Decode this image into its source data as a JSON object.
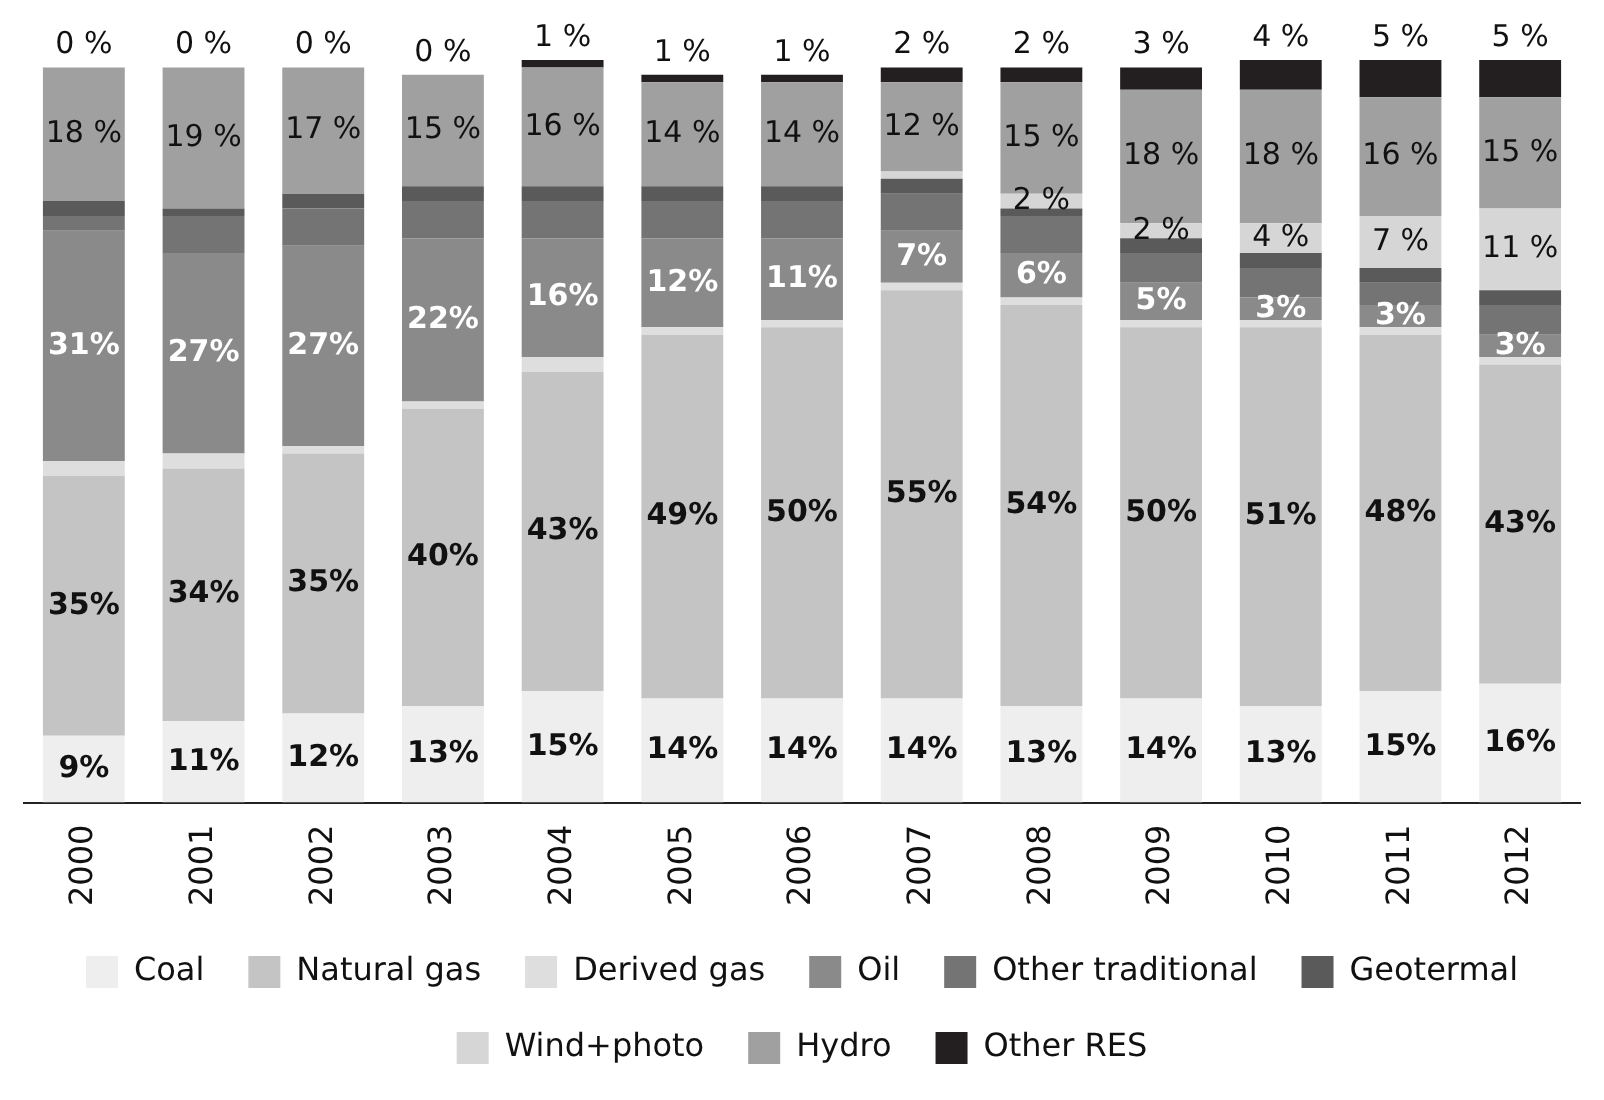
{
  "chart_data": {
    "type": "bar",
    "stacked": true,
    "categories": [
      "2000",
      "2001",
      "2002",
      "2003",
      "2004",
      "2005",
      "2006",
      "2007",
      "2008",
      "2009",
      "2010",
      "2011",
      "2012"
    ],
    "ylim": [
      0,
      100
    ],
    "tick_labels": "x",
    "grid": false,
    "legend": "bottom",
    "series": [
      {
        "name": "Coal",
        "color": "#eeeeee",
        "values": [
          9,
          11,
          12,
          13,
          15,
          14,
          14,
          14,
          13,
          14,
          13,
          15,
          16
        ],
        "value_labels": [
          "9%",
          "11%",
          "12%",
          "13%",
          "15%",
          "14%",
          "14%",
          "14%",
          "13%",
          "14%",
          "13%",
          "15%",
          "16%"
        ]
      },
      {
        "name": "Natural gas",
        "color": "#c4c4c4",
        "values": [
          35,
          34,
          35,
          40,
          43,
          49,
          50,
          55,
          54,
          50,
          51,
          48,
          43
        ],
        "value_labels": [
          "35%",
          "34%",
          "35%",
          "40%",
          "43%",
          "49%",
          "50%",
          "55%",
          "54%",
          "50%",
          "51%",
          "48%",
          "43%"
        ]
      },
      {
        "name": "Derived gas",
        "color": "#dedede",
        "values": [
          2,
          2,
          1,
          1,
          2,
          1,
          1,
          1,
          1,
          1,
          1,
          1,
          1
        ],
        "value_labels": [
          null,
          null,
          null,
          null,
          null,
          null,
          null,
          null,
          null,
          null,
          null,
          null,
          null
        ]
      },
      {
        "name": "Oil",
        "color": "#8a8a8a",
        "values": [
          31,
          27,
          27,
          22,
          16,
          12,
          11,
          7,
          6,
          5,
          3,
          3,
          3
        ],
        "value_labels": [
          "31%",
          "27%",
          "27%",
          "22%",
          "16%",
          "12%",
          "11%",
          "7%",
          "6%",
          "5%",
          "3%",
          "3%",
          "3%"
        ]
      },
      {
        "name": "Other traditional",
        "color": "#747474",
        "values": [
          2,
          5,
          5,
          5,
          5,
          5,
          5,
          5,
          5,
          4,
          4,
          3,
          4
        ],
        "value_labels": [
          null,
          null,
          null,
          null,
          null,
          null,
          null,
          null,
          null,
          null,
          null,
          null,
          null
        ]
      },
      {
        "name": "Geotermal",
        "color": "#5a5a5a",
        "values": [
          2,
          1,
          2,
          2,
          2,
          2,
          2,
          2,
          1,
          2,
          2,
          2,
          2
        ],
        "value_labels": [
          null,
          null,
          null,
          null,
          null,
          null,
          null,
          null,
          null,
          null,
          null,
          null,
          null
        ]
      },
      {
        "name": "Wind+photo",
        "color": "#d6d6d6",
        "values": [
          0,
          0,
          0,
          0,
          0,
          0,
          0,
          1,
          2,
          2,
          4,
          7,
          11
        ],
        "value_labels": [
          null,
          null,
          null,
          null,
          null,
          null,
          null,
          null,
          "2 %",
          "2 %",
          "4 %",
          "7 %",
          "11 %"
        ]
      },
      {
        "name": "Hydro",
        "color": "#a0a0a0",
        "values": [
          18,
          19,
          17,
          15,
          16,
          14,
          14,
          12,
          15,
          18,
          18,
          16,
          15
        ],
        "value_labels": [
          "18 %",
          "19 %",
          "17 %",
          "15 %",
          "16 %",
          "14 %",
          "14 %",
          "12 %",
          "15 %",
          "18 %",
          "18 %",
          "16 %",
          "15 %"
        ]
      },
      {
        "name": "Other RES",
        "color": "#231f20",
        "values": [
          0,
          0,
          0,
          0,
          1,
          1,
          1,
          2,
          2,
          3,
          4,
          5,
          5
        ],
        "value_labels": [
          "0 %",
          "0 %",
          "0 %",
          "0 %",
          "1 %",
          "1 %",
          "1 %",
          "2 %",
          "2 %",
          "3 %",
          "4 %",
          "5 %",
          "5 %"
        ]
      }
    ]
  }
}
